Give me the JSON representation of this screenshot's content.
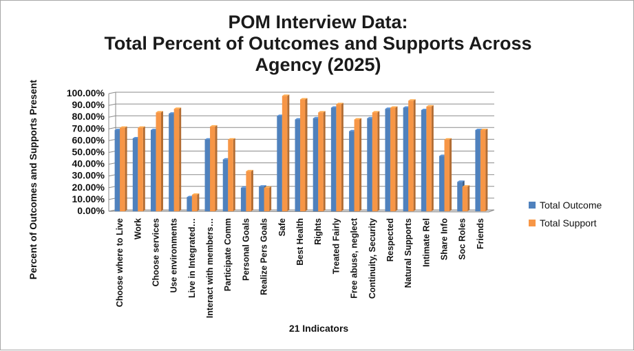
{
  "chart_data": {
    "type": "bar",
    "title_lines": [
      "POM Interview Data:",
      "Total Percent of Outcomes and Supports Across",
      "Agency (2025)"
    ],
    "xlabel": "21 Indicators",
    "ylabel": "Percent of Outcomes and Supports Present",
    "ylim": [
      0,
      100
    ],
    "yticks": [
      "0.00%",
      "10.00%",
      "20.00%",
      "30.00%",
      "40.00%",
      "50.00%",
      "60.00%",
      "70.00%",
      "80.00%",
      "90.00%",
      "100.00%"
    ],
    "grid": true,
    "legend_position": "right",
    "categories": [
      "Choose where to Live",
      "Work",
      "Choose services",
      "Use environments",
      "Live in Integrated…",
      "Interact with members…",
      "Participate Comm",
      "Personal Goals",
      "Realize Pers Goals",
      "Safe",
      "Best Health",
      "Rights",
      "Treated Fairly",
      "Free abuse, neglect",
      "Continuity, Security",
      "Respected",
      "Natural Supports",
      "Intimate Rel",
      "Share Info",
      "Soc Roles",
      "Friends"
    ],
    "series": [
      {
        "name": "Total Outcome",
        "color": "#4f81bd",
        "values": [
          69,
          62,
          69,
          83,
          12,
          61,
          44,
          20,
          21,
          81,
          78,
          79,
          88,
          68,
          79,
          87,
          88,
          86,
          47,
          25,
          69
        ]
      },
      {
        "name": "Total Support",
        "color": "#f79646",
        "values": [
          71,
          71,
          84,
          87,
          14,
          72,
          61,
          34,
          20,
          98,
          95,
          84,
          91,
          78,
          84,
          88,
          94,
          89,
          61,
          21,
          69
        ]
      }
    ]
  }
}
